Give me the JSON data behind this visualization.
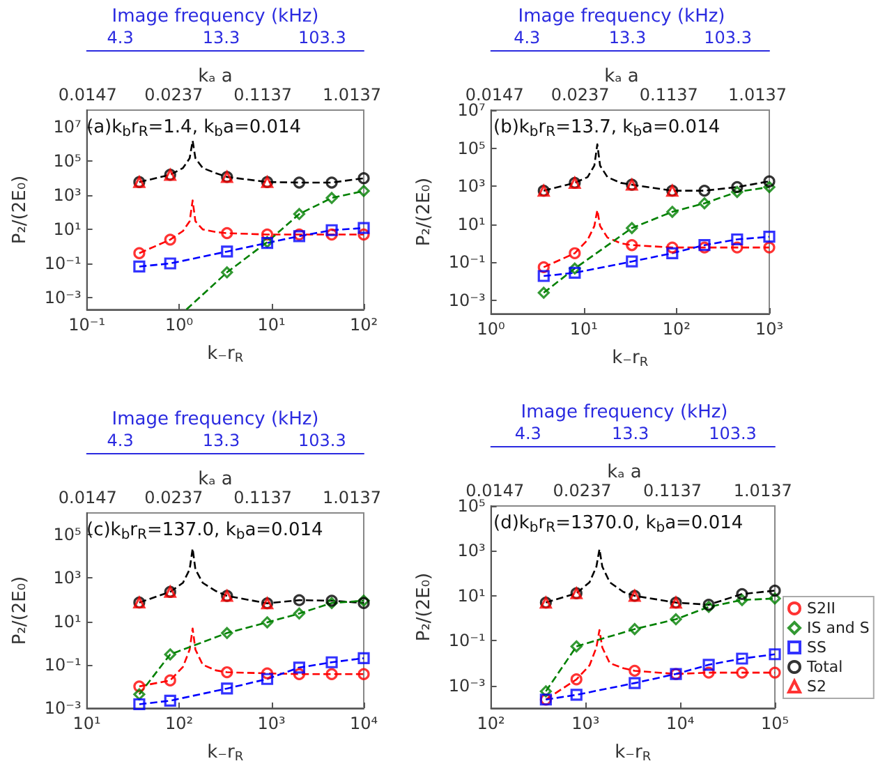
{
  "chart_data": [
    {
      "type": "line",
      "title": "(a)k$_{b}$r$_{R}$=1.4, k$_{b}$a=0.014",
      "xlabel": "k₋r$_{R}$",
      "ylabel": "P₂/(2E₀)",
      "log": "xy",
      "annotations": [
        "Image frequency (kHz)",
        "4.3",
        "13.3",
        "103.3",
        "kₐ a",
        "0.0147",
        "0.0237",
        "0.1137",
        "1.0137"
      ],
      "xlim": [
        0.1,
        100
      ],
      "xticks": [
        {
          "value": 0.1,
          "label": "10⁻¹"
        },
        {
          "value": 1,
          "label": "10⁰"
        },
        {
          "value": 10,
          "label": "10¹"
        },
        {
          "value": 100,
          "label": "10²"
        }
      ],
      "ylim": [
        0.0002,
        100000000
      ],
      "yticks": [
        {
          "value": 0.001,
          "label": "10⁻³"
        },
        {
          "value": 0.1,
          "label": "10⁻¹"
        },
        {
          "value": 10,
          "label": "10¹"
        },
        {
          "value": 1000,
          "label": "10³"
        },
        {
          "value": 100000,
          "label": "10⁵"
        },
        {
          "value": 10000000,
          "label": "10⁷"
        }
      ],
      "series": [
        {
          "type": "line",
          "color": "#000000",
          "line_style": "dashed",
          "x": [
            0.37,
            0.8,
            1.1,
            1.3,
            1.4,
            1.5,
            1.8,
            2.5,
            3.3,
            9,
            20,
            45,
            100
          ],
          "values": [
            6000,
            16000,
            40000,
            150000,
            1600000,
            150000,
            40000,
            20000,
            12000,
            6000,
            5600,
            5600,
            10000
          ]
        },
        {
          "type": "line",
          "color": "#ff0000",
          "line_style": "dashed",
          "x": [
            0.37,
            0.8,
            1.1,
            1.3,
            1.4,
            1.5,
            1.8,
            2.5,
            3.3,
            9,
            20,
            45,
            100
          ],
          "values": [
            0.4,
            2.5,
            8,
            30,
            500,
            30,
            10,
            7,
            6,
            5,
            5,
            5,
            5
          ]
        },
        {
          "type": "line",
          "color": "#0000ff",
          "line_style": "dashed",
          "x": [
            0.37,
            0.8,
            3.3,
            9,
            20,
            45,
            100
          ],
          "values": [
            0.066,
            0.1,
            0.5,
            1.6,
            4,
            9,
            12
          ]
        },
        {
          "type": "line",
          "color": "#008000",
          "line_style": "dashed",
          "x": [
            1.2,
            3.3,
            9,
            20,
            45,
            100
          ],
          "values": [
            0.0002,
            0.03,
            1.8,
            80,
            700,
            1800
          ]
        },
        {
          "type": "scatter",
          "color": "#ff0000",
          "marker": "circle",
          "x": [
            0.37,
            0.8,
            3.3,
            9,
            20,
            45,
            100
          ],
          "values": [
            0.4,
            2.5,
            6,
            5,
            5,
            5,
            5
          ]
        },
        {
          "type": "scatter",
          "color": "#008000",
          "marker": "diamond",
          "x": [
            3.3,
            9,
            20,
            45,
            100
          ],
          "values": [
            0.03,
            1.8,
            80,
            700,
            1800
          ]
        },
        {
          "type": "scatter",
          "color": "#0000ff",
          "marker": "square",
          "x": [
            0.37,
            0.8,
            3.3,
            9,
            20,
            45,
            100
          ],
          "values": [
            0.066,
            0.1,
            0.5,
            1.6,
            4,
            9,
            12
          ]
        },
        {
          "type": "scatter",
          "color": "#000000",
          "marker": "circle",
          "x": [
            0.37,
            0.8,
            3.3,
            9,
            20,
            45,
            100
          ],
          "values": [
            6000,
            16000,
            12000,
            6000,
            5600,
            5600,
            10000
          ]
        },
        {
          "type": "scatter",
          "color": "#ff0000",
          "marker": "triangle",
          "x": [
            0.37,
            0.8,
            3.3,
            9
          ],
          "values": [
            6000,
            16000,
            12000,
            6000
          ]
        }
      ]
    },
    {
      "type": "line",
      "title": "(b)k$_{b}$r$_{R}$=13.7, k$_{b}$a=0.014",
      "xlabel": "k₋r$_{R}$",
      "ylabel": "P₂/(2E₀)",
      "log": "xy",
      "annotations": [
        "Image frequency (kHz)",
        "4.3",
        "13.3",
        "103.3",
        "kₐ a",
        "0.0147",
        "0.0237",
        "0.1137",
        "1.0137"
      ],
      "xlim": [
        1,
        1000
      ],
      "xticks": [
        {
          "value": 1,
          "label": "10⁰"
        },
        {
          "value": 10,
          "label": "10¹"
        },
        {
          "value": 100,
          "label": "10²"
        },
        {
          "value": 1000,
          "label": "10³"
        }
      ],
      "ylim": [
        0.0002,
        10000000
      ],
      "yticks": [
        {
          "value": 0.001,
          "label": "10⁻³"
        },
        {
          "value": 0.1,
          "label": "10⁻¹"
        },
        {
          "value": 10,
          "label": "10¹"
        },
        {
          "value": 1000,
          "label": "10³"
        },
        {
          "value": 100000,
          "label": "10⁵"
        },
        {
          "value": 10000000,
          "label": "10⁷"
        }
      ],
      "series": [
        {
          "type": "line",
          "color": "#000000",
          "line_style": "dashed",
          "x": [
            3.7,
            8,
            11,
            13,
            14,
            15,
            18,
            25,
            33,
            90,
            200,
            450,
            1000
          ],
          "values": [
            580,
            1500,
            3000,
            12000,
            160000,
            12000,
            3000,
            1500,
            1200,
            580,
            580,
            900,
            1800
          ]
        },
        {
          "type": "line",
          "color": "#ff0000",
          "line_style": "dashed",
          "x": [
            3.7,
            8,
            11,
            13,
            14,
            15,
            18,
            25,
            33,
            90,
            200,
            450,
            1000
          ],
          "values": [
            0.055,
            0.3,
            1.5,
            8,
            56,
            8,
            2,
            1,
            0.8,
            0.6,
            0.6,
            0.6,
            0.6
          ]
        },
        {
          "type": "line",
          "color": "#0000ff",
          "line_style": "dashed",
          "x": [
            3.7,
            8,
            33,
            90,
            200,
            450,
            1000
          ],
          "values": [
            0.019,
            0.028,
            0.11,
            0.3,
            0.8,
            1.6,
            2.2
          ]
        },
        {
          "type": "line",
          "color": "#008000",
          "line_style": "dashed",
          "x": [
            3.7,
            8,
            33,
            90,
            200,
            450,
            1000
          ],
          "values": [
            0.0025,
            0.047,
            6.3,
            45,
            126,
            500,
            900
          ]
        },
        {
          "type": "scatter",
          "color": "#ff0000",
          "marker": "circle",
          "x": [
            3.7,
            8,
            33,
            90,
            200,
            450,
            1000
          ],
          "values": [
            0.055,
            0.3,
            0.8,
            0.6,
            0.6,
            0.6,
            0.6
          ]
        },
        {
          "type": "scatter",
          "color": "#008000",
          "marker": "diamond",
          "x": [
            3.7,
            8,
            33,
            90,
            200,
            450,
            1000
          ],
          "values": [
            0.0025,
            0.047,
            6.3,
            45,
            126,
            500,
            900
          ]
        },
        {
          "type": "scatter",
          "color": "#0000ff",
          "marker": "square",
          "x": [
            3.7,
            8,
            33,
            90,
            200,
            450,
            1000
          ],
          "values": [
            0.019,
            0.028,
            0.11,
            0.3,
            0.8,
            1.6,
            2.2
          ]
        },
        {
          "type": "scatter",
          "color": "#000000",
          "marker": "circle",
          "x": [
            3.7,
            8,
            33,
            90,
            200,
            450,
            1000
          ],
          "values": [
            580,
            1500,
            1200,
            580,
            580,
            900,
            1800
          ]
        },
        {
          "type": "scatter",
          "color": "#ff0000",
          "marker": "triangle",
          "x": [
            3.7,
            8,
            33,
            90
          ],
          "values": [
            580,
            1500,
            1200,
            580
          ]
        }
      ]
    },
    {
      "type": "line",
      "title": "(c)k$_{b}$r$_{R}$=137.0, k$_{b}$a=0.014",
      "xlabel": "k₋r$_{R}$",
      "ylabel": "P₂/(2E₀)",
      "log": "xy",
      "annotations": [
        "Image frequency (kHz)",
        "4.3",
        "13.3",
        "103.3",
        "kₐ a",
        "0.0147",
        "0.0237",
        "0.1137",
        "1.0137"
      ],
      "xlim": [
        10,
        10000
      ],
      "xticks": [
        {
          "value": 10,
          "label": "10¹"
        },
        {
          "value": 100,
          "label": "10²"
        },
        {
          "value": 1000,
          "label": "10³"
        },
        {
          "value": 10000,
          "label": "10⁴"
        }
      ],
      "ylim": [
        0.001,
        1000000
      ],
      "yticks": [
        {
          "value": 0.001,
          "label": "10⁻³"
        },
        {
          "value": 0.1,
          "label": "10⁻¹"
        },
        {
          "value": 10,
          "label": "10¹"
        },
        {
          "value": 1000,
          "label": "10³"
        },
        {
          "value": 100000,
          "label": "10⁵"
        }
      ],
      "series": [
        {
          "type": "line",
          "color": "#000000",
          "line_style": "dashed",
          "x": [
            37,
            80,
            110,
            130,
            140,
            150,
            180,
            250,
            330,
            900,
            2000,
            4500,
            10000
          ],
          "values": [
            74,
            230,
            600,
            2500,
            23000,
            2500,
            600,
            250,
            150,
            68,
            95,
            90,
            70
          ]
        },
        {
          "type": "line",
          "color": "#ff0000",
          "line_style": "dashed",
          "x": [
            37,
            80,
            110,
            130,
            140,
            150,
            180,
            250,
            330,
            900,
            2000,
            4500,
            10000
          ],
          "values": [
            0.01,
            0.019,
            0.08,
            0.5,
            4.7,
            0.5,
            0.1,
            0.055,
            0.045,
            0.04,
            0.037,
            0.037,
            0.037
          ]
        },
        {
          "type": "line",
          "color": "#0000ff",
          "line_style": "dashed",
          "x": [
            37,
            80,
            330,
            900,
            2000,
            4500,
            10000
          ],
          "values": [
            0.0015,
            0.0022,
            0.008,
            0.022,
            0.074,
            0.13,
            0.2
          ]
        },
        {
          "type": "line",
          "color": "#008000",
          "line_style": "dashed",
          "x": [
            37,
            80,
            330,
            900,
            2000,
            4500,
            10000
          ],
          "values": [
            0.0043,
            0.3,
            2.9,
            9,
            23,
            70,
            90
          ]
        },
        {
          "type": "scatter",
          "color": "#ff0000",
          "marker": "circle",
          "x": [
            37,
            80,
            330,
            900,
            2000,
            4500,
            10000
          ],
          "values": [
            0.01,
            0.019,
            0.045,
            0.04,
            0.037,
            0.037,
            0.037
          ]
        },
        {
          "type": "scatter",
          "color": "#008000",
          "marker": "diamond",
          "x": [
            37,
            80,
            330,
            900,
            2000,
            4500,
            10000
          ],
          "values": [
            0.0043,
            0.3,
            2.9,
            9,
            23,
            70,
            90
          ]
        },
        {
          "type": "scatter",
          "color": "#0000ff",
          "marker": "square",
          "x": [
            37,
            80,
            330,
            900,
            2000,
            4500,
            10000
          ],
          "values": [
            0.0015,
            0.0022,
            0.008,
            0.022,
            0.074,
            0.13,
            0.2
          ]
        },
        {
          "type": "scatter",
          "color": "#000000",
          "marker": "circle",
          "x": [
            37,
            80,
            330,
            900,
            2000,
            4500,
            10000
          ],
          "values": [
            74,
            230,
            150,
            68,
            95,
            90,
            70
          ]
        },
        {
          "type": "scatter",
          "color": "#ff0000",
          "marker": "triangle",
          "x": [
            37,
            80,
            330,
            900
          ],
          "values": [
            74,
            230,
            150,
            68
          ]
        }
      ]
    },
    {
      "type": "line",
      "title": "(d)k$_{b}$r$_{R}$=1370.0, k$_{b}$a=0.014",
      "xlabel": "k₋r$_{R}$",
      "ylabel": "P₂/(2E₀)",
      "log": "xy",
      "legend": "right",
      "annotations": [
        "Image frequency (kHz)",
        "4.3",
        "13.3",
        "103.3",
        "kₐ a",
        "0.0147",
        "0.0237",
        "0.1137",
        "1.0137"
      ],
      "xlim": [
        100,
        100000
      ],
      "xticks": [
        {
          "value": 100,
          "label": "10²"
        },
        {
          "value": 1000,
          "label": "10³"
        },
        {
          "value": 10000,
          "label": "10⁴"
        },
        {
          "value": 100000,
          "label": "10⁵"
        }
      ],
      "ylim": [
        0.0001,
        100000
      ],
      "yticks": [
        {
          "value": 0.001,
          "label": "10⁻³"
        },
        {
          "value": 0.1,
          "label": "10⁻¹"
        },
        {
          "value": 10,
          "label": "10¹"
        },
        {
          "value": 1000,
          "label": "10³"
        },
        {
          "value": 100000,
          "label": "10⁵"
        }
      ],
      "series": [
        {
          "type": "line",
          "color": "#000000",
          "line_style": "dashed",
          "x": [
            380,
            800,
            1100,
            1300,
            1400,
            1500,
            1800,
            2500,
            3300,
            9000,
            20000,
            45000,
            100000
          ],
          "values": [
            5,
            13,
            40,
            200,
            1200,
            200,
            40,
            15,
            10,
            5,
            4,
            12,
            17
          ]
        },
        {
          "type": "line",
          "color": "#ff0000",
          "line_style": "dashed",
          "x": [
            380,
            800,
            1100,
            1300,
            1400,
            1500,
            1800,
            2500,
            3300,
            9000,
            20000,
            45000,
            100000
          ],
          "values": [
            0.00024,
            0.0019,
            0.008,
            0.05,
            0.3,
            0.05,
            0.01,
            0.006,
            0.0046,
            0.0033,
            0.0038,
            0.0038,
            0.0038
          ]
        },
        {
          "type": "line",
          "color": "#0000ff",
          "line_style": "dashed",
          "x": [
            380,
            800,
            3300,
            9000,
            20000,
            45000,
            100000
          ],
          "values": [
            0.00024,
            0.00039,
            0.0013,
            0.0033,
            0.0085,
            0.016,
            0.025
          ]
        },
        {
          "type": "line",
          "color": "#008000",
          "line_style": "dashed",
          "x": [
            380,
            800,
            3300,
            9000,
            20000,
            45000,
            100000
          ],
          "values": [
            0.00056,
            0.056,
            0.33,
            0.9,
            3.2,
            6.5,
            7.6
          ]
        },
        {
          "type": "scatter",
          "name": "S2II",
          "color": "#ff0000",
          "marker": "circle",
          "x": [
            380,
            800,
            3300,
            9000,
            20000,
            45000,
            100000
          ],
          "values": [
            0.00024,
            0.0019,
            0.0046,
            0.0033,
            0.0038,
            0.0038,
            0.0038
          ]
        },
        {
          "type": "scatter",
          "name": "IS and S",
          "color": "#008000",
          "marker": "diamond",
          "x": [
            380,
            800,
            3300,
            9000,
            20000,
            45000,
            100000
          ],
          "values": [
            0.00056,
            0.056,
            0.33,
            0.9,
            3.2,
            6.5,
            7.6
          ]
        },
        {
          "type": "scatter",
          "name": "SS",
          "color": "#0000ff",
          "marker": "square",
          "x": [
            380,
            800,
            3300,
            9000,
            20000,
            45000,
            100000
          ],
          "values": [
            0.00024,
            0.00039,
            0.0013,
            0.0033,
            0.0085,
            0.016,
            0.025
          ]
        },
        {
          "type": "scatter",
          "name": "Total",
          "color": "#000000",
          "marker": "circle",
          "x": [
            380,
            800,
            3300,
            9000,
            20000,
            45000,
            100000
          ],
          "values": [
            5,
            13,
            10,
            5,
            4,
            12,
            17
          ]
        },
        {
          "type": "scatter",
          "name": "S2",
          "color": "#ff0000",
          "marker": "triangle",
          "x": [
            380,
            800,
            3300,
            9000
          ],
          "values": [
            5,
            13,
            10,
            5
          ]
        }
      ]
    }
  ]
}
